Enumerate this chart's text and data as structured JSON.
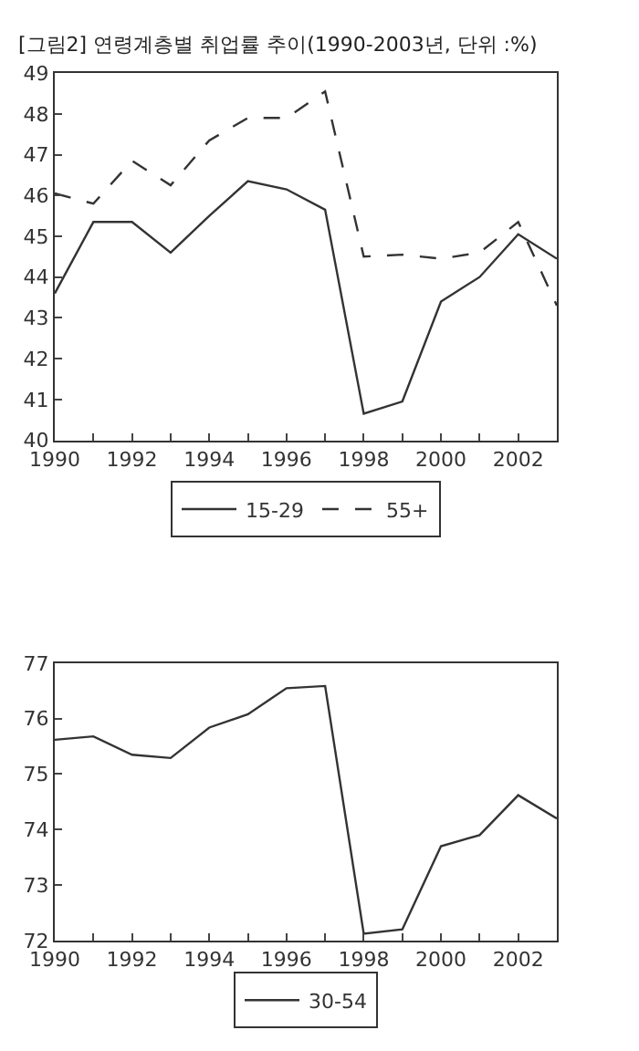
{
  "chart_data": [
    {
      "type": "line",
      "title": "[그림2] 연령계층별 취업률 추이(1990-2003년, 단위 :%)",
      "x": [
        1990,
        1991,
        1992,
        1993,
        1994,
        1995,
        1996,
        1997,
        1998,
        1999,
        2000,
        2001,
        2002,
        2003
      ],
      "series": [
        {
          "name": "15-29",
          "color": "#333333",
          "line_style": "solid",
          "values": [
            43.6,
            45.35,
            45.35,
            44.6,
            45.5,
            46.35,
            46.15,
            45.65,
            40.65,
            40.95,
            43.4,
            44.0,
            45.05,
            44.45
          ]
        },
        {
          "name": "55+",
          "color": "#333333",
          "line_style": "dashed",
          "values": [
            46.05,
            45.8,
            46.85,
            46.25,
            47.35,
            47.9,
            47.9,
            48.55,
            44.5,
            44.55,
            44.45,
            44.6,
            45.35,
            43.3
          ]
        }
      ],
      "xlim": [
        1990,
        2003
      ],
      "xticks": [
        1990,
        {
          "value": 1991,
          "label": null
        },
        1992,
        {
          "value": 1993,
          "label": null
        },
        1994,
        {
          "value": 1995,
          "label": null
        },
        1996,
        {
          "value": 1997,
          "label": null
        },
        1998,
        {
          "value": 1999,
          "label": null
        },
        2000,
        {
          "value": 2001,
          "label": null
        },
        2002,
        {
          "value": 2003,
          "label": null
        }
      ],
      "ylim": [
        40,
        49
      ],
      "yticks": [
        40,
        41,
        42,
        43,
        44,
        45,
        46,
        47,
        48,
        49
      ],
      "legend": "bottom"
    },
    {
      "type": "line",
      "x": [
        1990,
        1991,
        1992,
        1993,
        1994,
        1995,
        1996,
        1997,
        1998,
        1999,
        2000,
        2001,
        2002,
        2003
      ],
      "series": [
        {
          "name": "30-54",
          "color": "#333333",
          "line_style": "solid",
          "values": [
            75.62,
            75.68,
            75.35,
            75.29,
            75.84,
            76.08,
            76.55,
            76.59,
            72.12,
            72.2,
            73.7,
            73.9,
            74.62,
            74.2
          ]
        }
      ],
      "xlim": [
        1990,
        2003
      ],
      "xticks": [
        1990,
        {
          "value": 1991,
          "label": null
        },
        1992,
        {
          "value": 1993,
          "label": null
        },
        1994,
        {
          "value": 1995,
          "label": null
        },
        1996,
        {
          "value": 1997,
          "label": null
        },
        1998,
        {
          "value": 1999,
          "label": null
        },
        2000,
        {
          "value": 2001,
          "label": null
        },
        2002,
        {
          "value": 2003,
          "label": null
        }
      ],
      "ylim": [
        72,
        77
      ],
      "yticks": [
        72,
        73,
        74,
        75,
        76,
        77
      ],
      "legend": "bottom"
    }
  ]
}
